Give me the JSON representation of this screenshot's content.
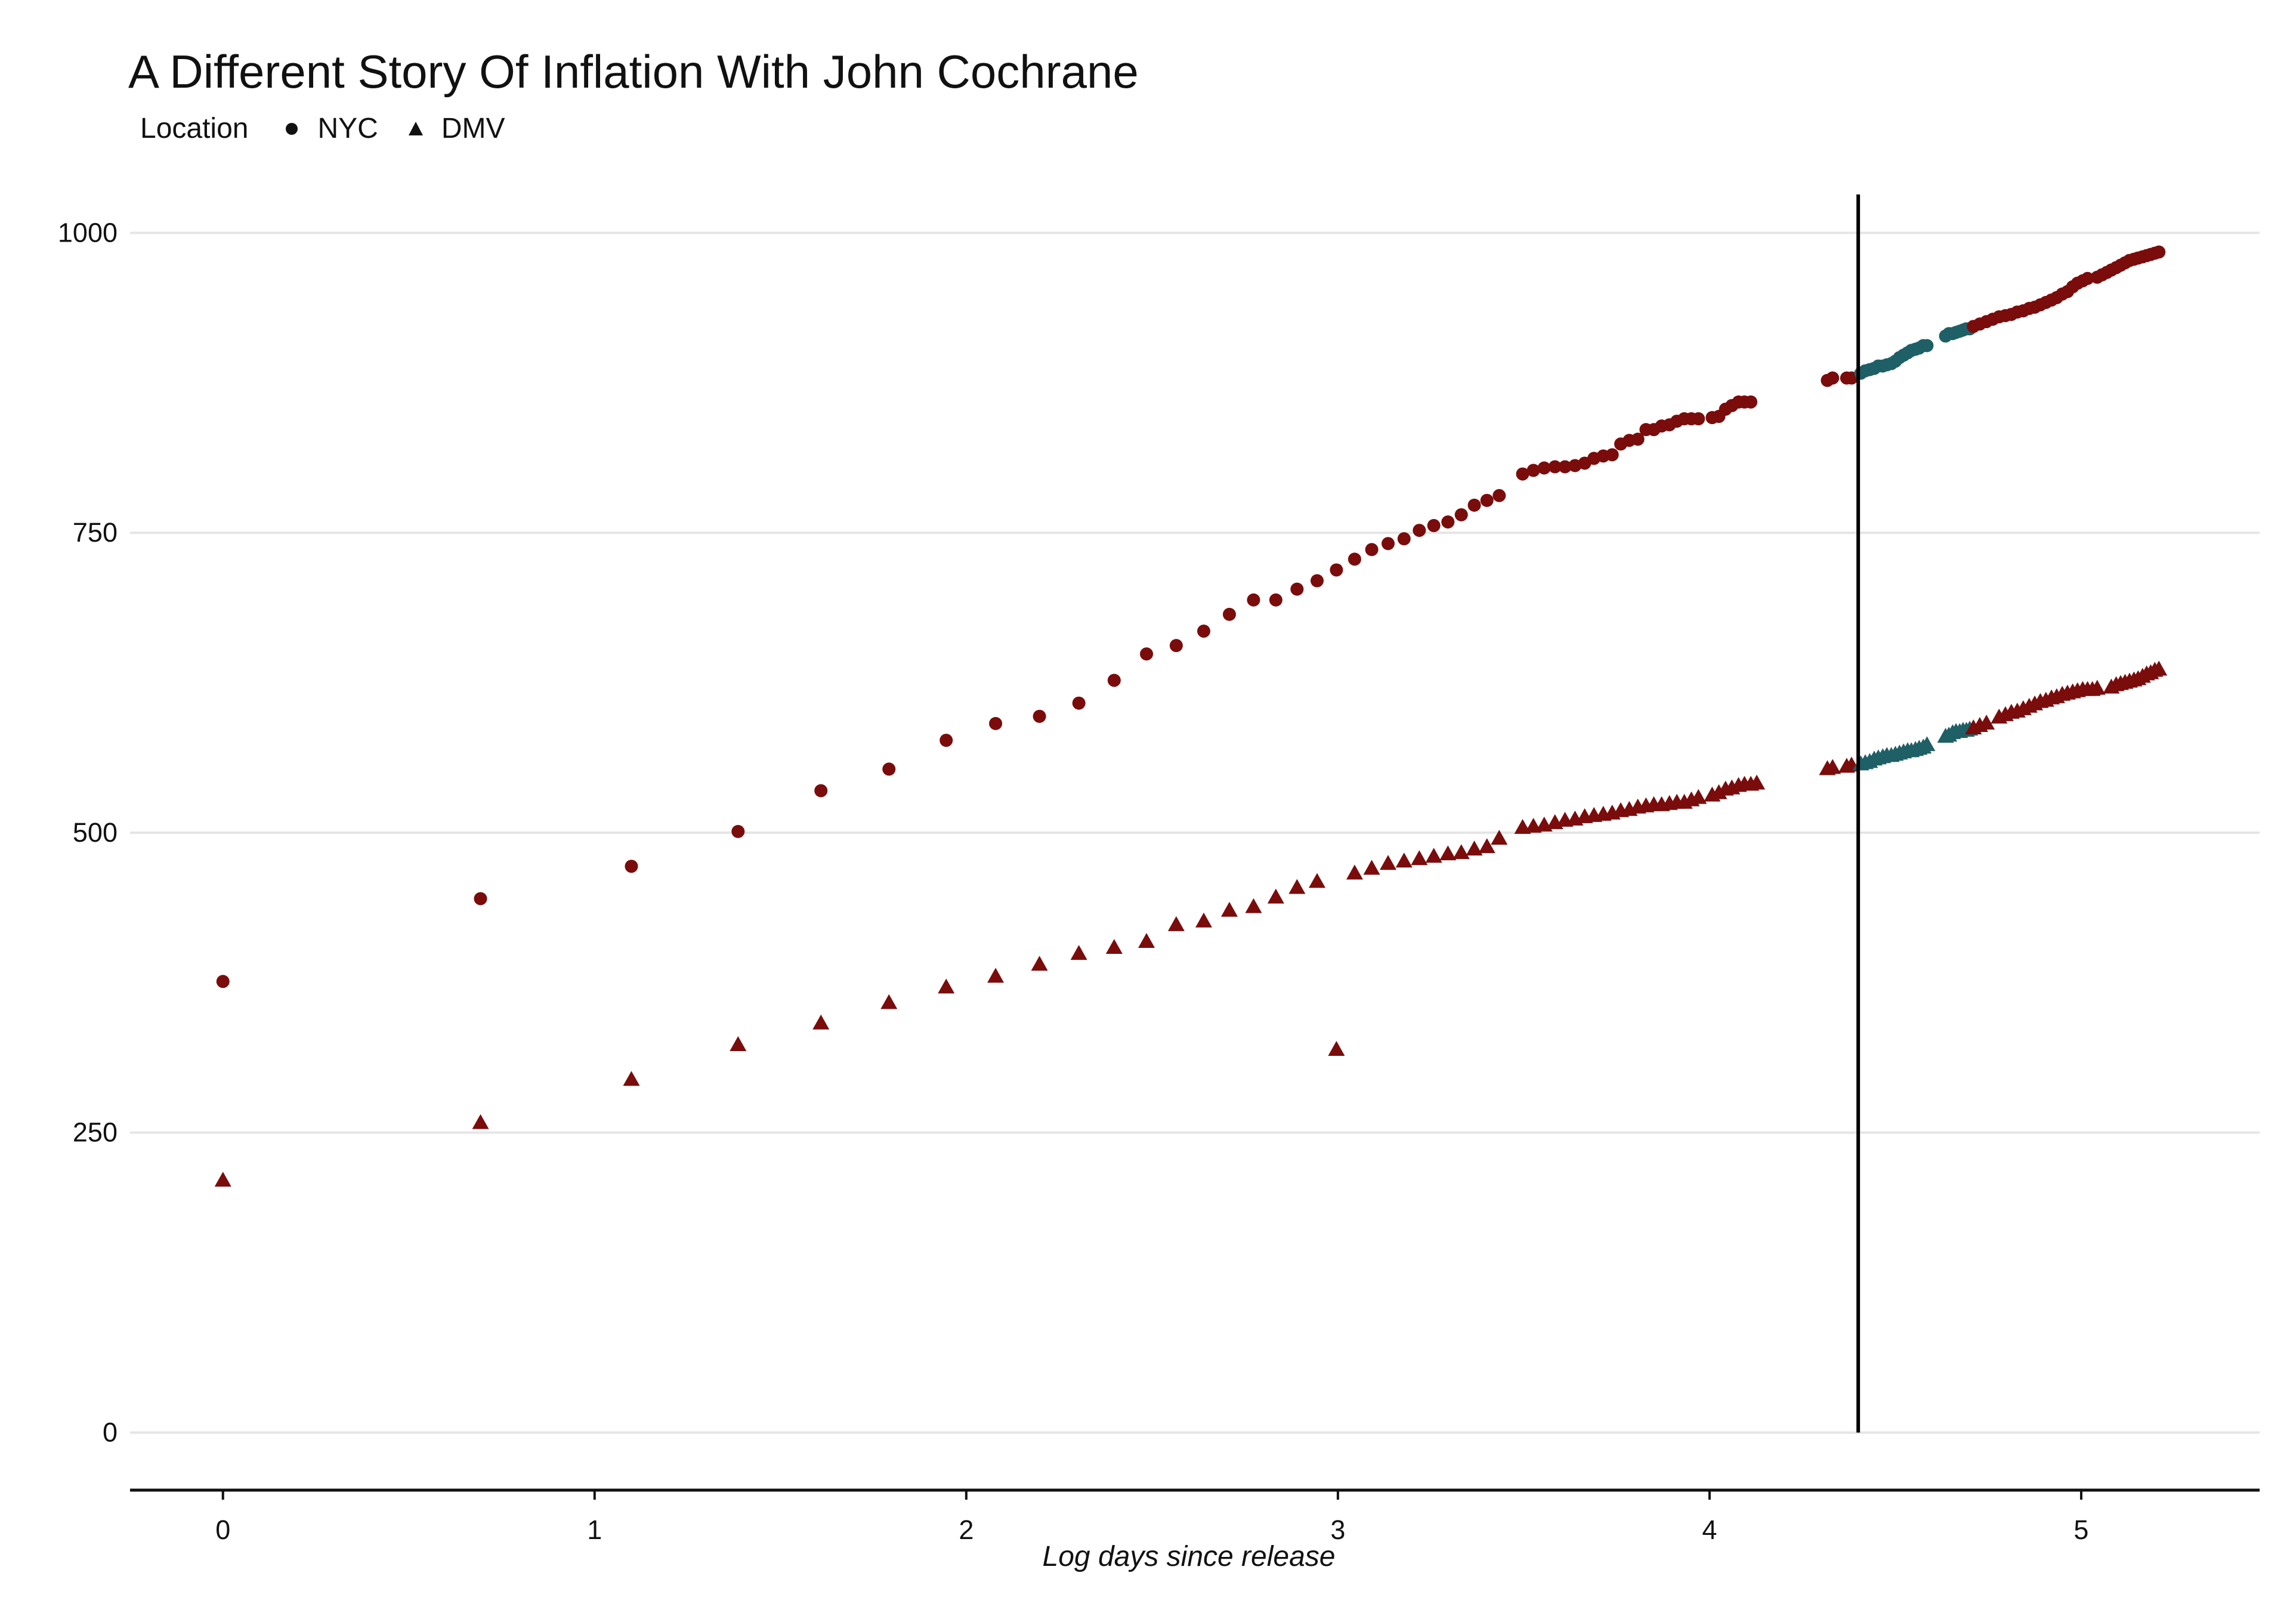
{
  "chart_data": {
    "type": "scatter",
    "title": "A Different Story Of Inflation With John Cochrane",
    "xlabel": "Log days since release",
    "ylabel": "",
    "xlim": [
      -0.25,
      5.48
    ],
    "ylim": [
      -48,
      1030
    ],
    "x_ticks": [
      0,
      1,
      2,
      3,
      4,
      5
    ],
    "y_ticks": [
      0,
      250,
      500,
      750,
      1000
    ],
    "grid": "horizontal",
    "legend": {
      "title": "Location",
      "position": "top-left",
      "entries": [
        {
          "label": "NYC",
          "shape": "circle"
        },
        {
          "label": "DMV",
          "shape": "triangle"
        }
      ]
    },
    "vline_x": 4.4,
    "highlight_range": [
      4.4,
      4.7
    ],
    "colors": {
      "default": "#7a0c0c",
      "highlight": "#1f5f66",
      "vline": "#000000",
      "grid": "#e5e5e5"
    },
    "series": [
      {
        "name": "NYC",
        "shape": "circle",
        "points": [
          [
            0,
            376
          ],
          [
            0.693,
            445
          ],
          [
            1.099,
            472
          ],
          [
            1.386,
            501
          ],
          [
            1.609,
            535
          ],
          [
            1.792,
            553
          ],
          [
            1.946,
            577
          ],
          [
            2.079,
            591
          ],
          [
            2.197,
            597
          ],
          [
            2.303,
            608
          ],
          [
            2.398,
            627
          ],
          [
            2.485,
            649
          ],
          [
            2.565,
            656
          ],
          [
            2.639,
            668
          ],
          [
            2.708,
            682
          ],
          [
            2.773,
            694
          ],
          [
            2.833,
            694
          ],
          [
            2.89,
            703
          ],
          [
            2.944,
            710
          ],
          [
            2.996,
            719
          ],
          [
            3.045,
            728
          ],
          [
            3.091,
            736
          ],
          [
            3.135,
            741
          ],
          [
            3.178,
            745
          ],
          [
            3.219,
            752
          ],
          [
            3.258,
            756
          ],
          [
            3.296,
            759
          ],
          [
            3.332,
            765
          ],
          [
            3.367,
            773
          ],
          [
            3.401,
            777
          ],
          [
            3.434,
            781
          ],
          [
            3.497,
            799
          ],
          [
            3.526,
            802
          ],
          [
            3.555,
            804
          ],
          [
            3.584,
            805
          ],
          [
            3.611,
            805
          ],
          [
            3.638,
            806
          ],
          [
            3.664,
            808
          ],
          [
            3.689,
            812
          ],
          [
            3.714,
            814
          ],
          [
            3.738,
            815
          ],
          [
            3.761,
            824
          ],
          [
            3.784,
            827
          ],
          [
            3.807,
            828
          ],
          [
            3.829,
            836
          ],
          [
            3.85,
            836
          ],
          [
            3.871,
            839
          ],
          [
            3.892,
            840
          ],
          [
            3.912,
            843
          ],
          [
            3.932,
            845
          ],
          [
            3.951,
            845
          ],
          [
            3.97,
            845
          ],
          [
            4.007,
            846
          ],
          [
            4.025,
            847
          ],
          [
            4.043,
            853
          ],
          [
            4.06,
            856
          ],
          [
            4.078,
            859
          ],
          [
            4.094,
            859
          ],
          [
            4.111,
            859
          ],
          [
            4.317,
            877
          ],
          [
            4.331,
            879
          ],
          [
            4.369,
            879
          ],
          [
            4.382,
            879
          ],
          [
            4.407,
            883
          ],
          [
            4.419,
            885
          ],
          [
            4.431,
            886
          ],
          [
            4.443,
            887
          ],
          [
            4.454,
            889
          ],
          [
            4.466,
            889
          ],
          [
            4.477,
            890
          ],
          [
            4.489,
            891
          ],
          [
            4.5,
            893
          ],
          [
            4.511,
            896
          ],
          [
            4.522,
            898
          ],
          [
            4.533,
            900
          ],
          [
            4.543,
            902
          ],
          [
            4.554,
            903
          ],
          [
            4.564,
            904
          ],
          [
            4.575,
            906
          ],
          [
            4.585,
            906
          ],
          [
            4.635,
            914
          ],
          [
            4.644,
            916
          ],
          [
            4.654,
            916
          ],
          [
            4.663,
            917
          ],
          [
            4.673,
            918
          ],
          [
            4.682,
            919
          ],
          [
            4.691,
            920
          ],
          [
            4.7,
            920
          ],
          [
            4.71,
            922
          ],
          [
            4.727,
            924
          ],
          [
            4.745,
            926
          ],
          [
            4.762,
            928
          ],
          [
            4.779,
            930
          ],
          [
            4.796,
            931
          ],
          [
            4.812,
            932
          ],
          [
            4.828,
            934
          ],
          [
            4.844,
            935
          ],
          [
            4.86,
            937
          ],
          [
            4.875,
            938
          ],
          [
            4.89,
            940
          ],
          [
            4.905,
            942
          ],
          [
            4.92,
            944
          ],
          [
            4.934,
            946
          ],
          [
            4.949,
            949
          ],
          [
            4.963,
            951
          ],
          [
            4.977,
            955
          ],
          [
            4.99,
            958
          ],
          [
            5.004,
            960
          ],
          [
            5.017,
            962
          ],
          [
            5.043,
            963
          ],
          [
            5.056,
            965
          ],
          [
            5.069,
            967
          ],
          [
            5.081,
            969
          ],
          [
            5.094,
            971
          ],
          [
            5.106,
            973
          ],
          [
            5.118,
            975
          ],
          [
            5.13,
            977
          ],
          [
            5.142,
            978
          ],
          [
            5.153,
            979
          ],
          [
            5.165,
            980
          ],
          [
            5.176,
            981
          ],
          [
            5.187,
            982
          ],
          [
            5.198,
            983
          ],
          [
            5.209,
            984
          ]
        ]
      },
      {
        "name": "DMV",
        "shape": "triangle",
        "points": [
          [
            0,
            210
          ],
          [
            0.693,
            258
          ],
          [
            1.099,
            294
          ],
          [
            1.386,
            323
          ],
          [
            1.609,
            341
          ],
          [
            1.792,
            358
          ],
          [
            1.946,
            371
          ],
          [
            2.079,
            380
          ],
          [
            2.197,
            390
          ],
          [
            2.303,
            399
          ],
          [
            2.398,
            404
          ],
          [
            2.485,
            409
          ],
          [
            2.565,
            423
          ],
          [
            2.639,
            426
          ],
          [
            2.708,
            435
          ],
          [
            2.773,
            438
          ],
          [
            2.833,
            446
          ],
          [
            2.89,
            454
          ],
          [
            2.944,
            459
          ],
          [
            2.996,
            319
          ],
          [
            3.045,
            466
          ],
          [
            3.091,
            470
          ],
          [
            3.135,
            474
          ],
          [
            3.178,
            476
          ],
          [
            3.219,
            478
          ],
          [
            3.258,
            480
          ],
          [
            3.296,
            482
          ],
          [
            3.332,
            483
          ],
          [
            3.367,
            486
          ],
          [
            3.401,
            488
          ],
          [
            3.434,
            495
          ],
          [
            3.497,
            504
          ],
          [
            3.526,
            505
          ],
          [
            3.555,
            506
          ],
          [
            3.584,
            508
          ],
          [
            3.611,
            510
          ],
          [
            3.638,
            511
          ],
          [
            3.664,
            513
          ],
          [
            3.689,
            514
          ],
          [
            3.714,
            515
          ],
          [
            3.738,
            516
          ],
          [
            3.761,
            518
          ],
          [
            3.784,
            519
          ],
          [
            3.807,
            521
          ],
          [
            3.829,
            522
          ],
          [
            3.85,
            523
          ],
          [
            3.871,
            523
          ],
          [
            3.892,
            524
          ],
          [
            3.912,
            525
          ],
          [
            3.932,
            525
          ],
          [
            3.951,
            527
          ],
          [
            3.97,
            529
          ],
          [
            4.007,
            531
          ],
          [
            4.025,
            533
          ],
          [
            4.043,
            536
          ],
          [
            4.06,
            537
          ],
          [
            4.078,
            539
          ],
          [
            4.094,
            540
          ],
          [
            4.111,
            540
          ],
          [
            4.127,
            541
          ],
          [
            4.317,
            553
          ],
          [
            4.331,
            554
          ],
          [
            4.369,
            555
          ],
          [
            4.382,
            556
          ],
          [
            4.407,
            557
          ],
          [
            4.419,
            558
          ],
          [
            4.431,
            559
          ],
          [
            4.443,
            561
          ],
          [
            4.454,
            562
          ],
          [
            4.466,
            563
          ],
          [
            4.477,
            564
          ],
          [
            4.489,
            564
          ],
          [
            4.5,
            565
          ],
          [
            4.511,
            566
          ],
          [
            4.522,
            567
          ],
          [
            4.533,
            568
          ],
          [
            4.543,
            568
          ],
          [
            4.554,
            569
          ],
          [
            4.564,
            570
          ],
          [
            4.575,
            571
          ],
          [
            4.585,
            573
          ],
          [
            4.635,
            580
          ],
          [
            4.644,
            581
          ],
          [
            4.654,
            583
          ],
          [
            4.663,
            584
          ],
          [
            4.673,
            584
          ],
          [
            4.682,
            585
          ],
          [
            4.691,
            585
          ],
          [
            4.7,
            586
          ],
          [
            4.71,
            587
          ],
          [
            4.727,
            589
          ],
          [
            4.745,
            591
          ],
          [
            4.779,
            596
          ],
          [
            4.796,
            598
          ],
          [
            4.812,
            600
          ],
          [
            4.828,
            601
          ],
          [
            4.844,
            603
          ],
          [
            4.86,
            605
          ],
          [
            4.875,
            607
          ],
          [
            4.89,
            609
          ],
          [
            4.905,
            610
          ],
          [
            4.92,
            612
          ],
          [
            4.934,
            613
          ],
          [
            4.949,
            615
          ],
          [
            4.963,
            616
          ],
          [
            4.977,
            617
          ],
          [
            4.99,
            618
          ],
          [
            5.004,
            619
          ],
          [
            5.017,
            619
          ],
          [
            5.03,
            619
          ],
          [
            5.043,
            620
          ],
          [
            5.081,
            621
          ],
          [
            5.094,
            623
          ],
          [
            5.106,
            624
          ],
          [
            5.118,
            625
          ],
          [
            5.13,
            626
          ],
          [
            5.142,
            627
          ],
          [
            5.153,
            628
          ],
          [
            5.165,
            630
          ],
          [
            5.176,
            632
          ],
          [
            5.187,
            633
          ],
          [
            5.198,
            635
          ],
          [
            5.209,
            636
          ]
        ]
      }
    ]
  }
}
